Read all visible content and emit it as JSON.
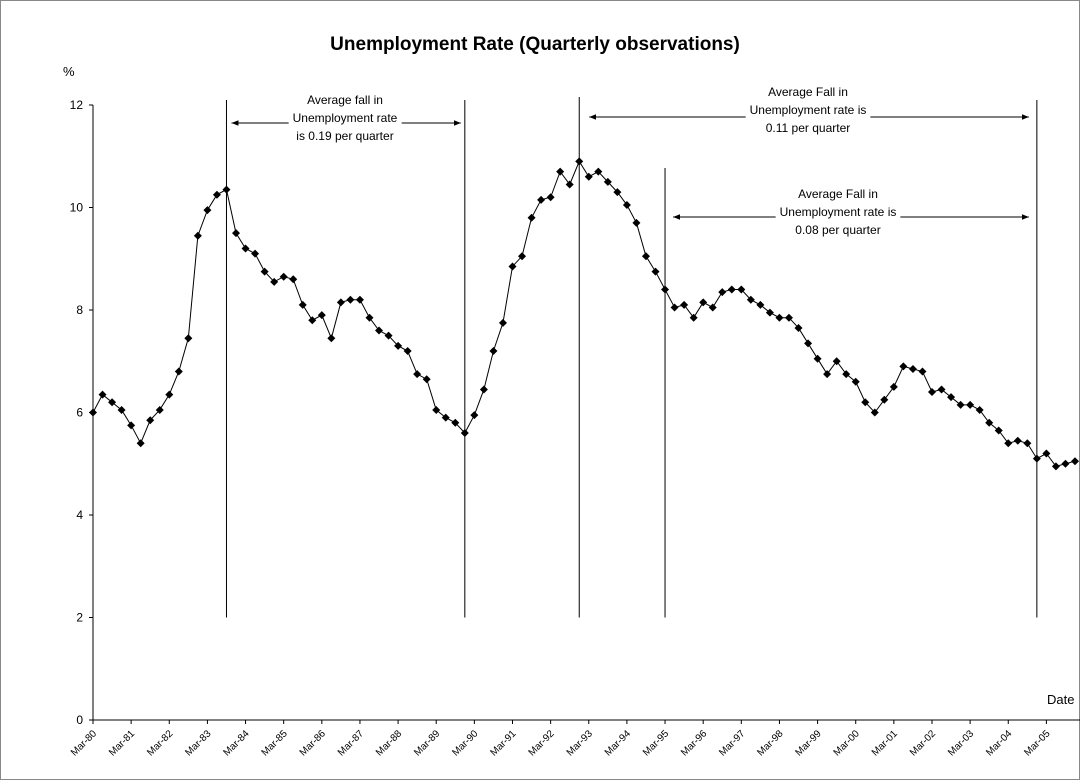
{
  "chart_data": {
    "type": "line",
    "title": "Unemployment Rate (Quarterly observations)",
    "y_label": "%",
    "x_label": "Date",
    "categories": [
      "Mar-80",
      null,
      null,
      null,
      "Mar-81",
      null,
      null,
      null,
      "Mar-82",
      null,
      null,
      null,
      "Mar-83",
      null,
      null,
      null,
      "Mar-84",
      null,
      null,
      null,
      "Mar-85",
      null,
      null,
      null,
      "Mar-86",
      null,
      null,
      null,
      "Mar-87",
      null,
      null,
      null,
      "Mar-88",
      null,
      null,
      null,
      "Mar-89",
      null,
      null,
      null,
      "Mar-90",
      null,
      null,
      null,
      "Mar-91",
      null,
      null,
      null,
      "Mar-92",
      null,
      null,
      null,
      "Mar-93",
      null,
      null,
      null,
      "Mar-94",
      null,
      null,
      null,
      "Mar-95",
      null,
      null,
      null,
      "Mar-96",
      null,
      null,
      null,
      "Mar-97",
      null,
      null,
      null,
      "Mar-98",
      null,
      null,
      null,
      "Mar-99",
      null,
      null,
      null,
      "Mar-00",
      null,
      null,
      null,
      "Mar-01",
      null,
      null,
      null,
      "Mar-02",
      null,
      null,
      null,
      "Mar-03",
      null,
      null,
      null,
      "Mar-04",
      null,
      null,
      null,
      "Mar-05",
      null,
      null,
      null
    ],
    "series": [
      {
        "name": "Unemployment rate",
        "color": "#000000",
        "values": [
          6.0,
          6.35,
          6.2,
          6.05,
          5.75,
          5.4,
          5.85,
          6.05,
          6.35,
          6.8,
          7.45,
          9.45,
          9.95,
          10.25,
          10.35,
          9.5,
          9.2,
          9.1,
          8.75,
          8.55,
          8.65,
          8.6,
          8.1,
          7.8,
          7.9,
          7.45,
          8.15,
          8.2,
          8.2,
          7.85,
          7.6,
          7.5,
          7.3,
          7.2,
          6.75,
          6.65,
          6.05,
          5.9,
          5.8,
          5.6,
          5.95,
          6.45,
          7.2,
          7.75,
          8.85,
          9.05,
          9.8,
          10.15,
          10.2,
          10.7,
          10.45,
          10.9,
          10.6,
          10.7,
          10.5,
          10.3,
          10.05,
          9.7,
          9.05,
          8.75,
          8.4,
          8.05,
          8.1,
          7.85,
          8.15,
          8.05,
          8.35,
          8.4,
          8.4,
          8.2,
          8.1,
          7.95,
          7.85,
          7.85,
          7.65,
          7.35,
          7.05,
          6.75,
          7.0,
          6.75,
          6.6,
          6.2,
          6.0,
          6.25,
          6.5,
          6.9,
          6.85,
          6.8,
          6.4,
          6.45,
          6.3,
          6.15,
          6.15,
          6.05,
          5.8,
          5.65,
          5.4,
          5.45,
          5.4,
          5.1,
          5.2,
          4.95,
          5.0,
          5.05
        ]
      }
    ],
    "ylim": [
      0,
      12
    ],
    "yticks": [
      0,
      2,
      4,
      6,
      8,
      10,
      12
    ],
    "grid": false,
    "annotations": [
      [
        "Average fall in",
        "Unemployment rate",
        "is 0.19 per quarter"
      ],
      [
        "Average Fall in",
        "Unemployment rate is",
        "0.11 per quarter"
      ],
      [
        "Average Fall in",
        "Unemployment rate is",
        "0.08 per quarter"
      ]
    ]
  }
}
